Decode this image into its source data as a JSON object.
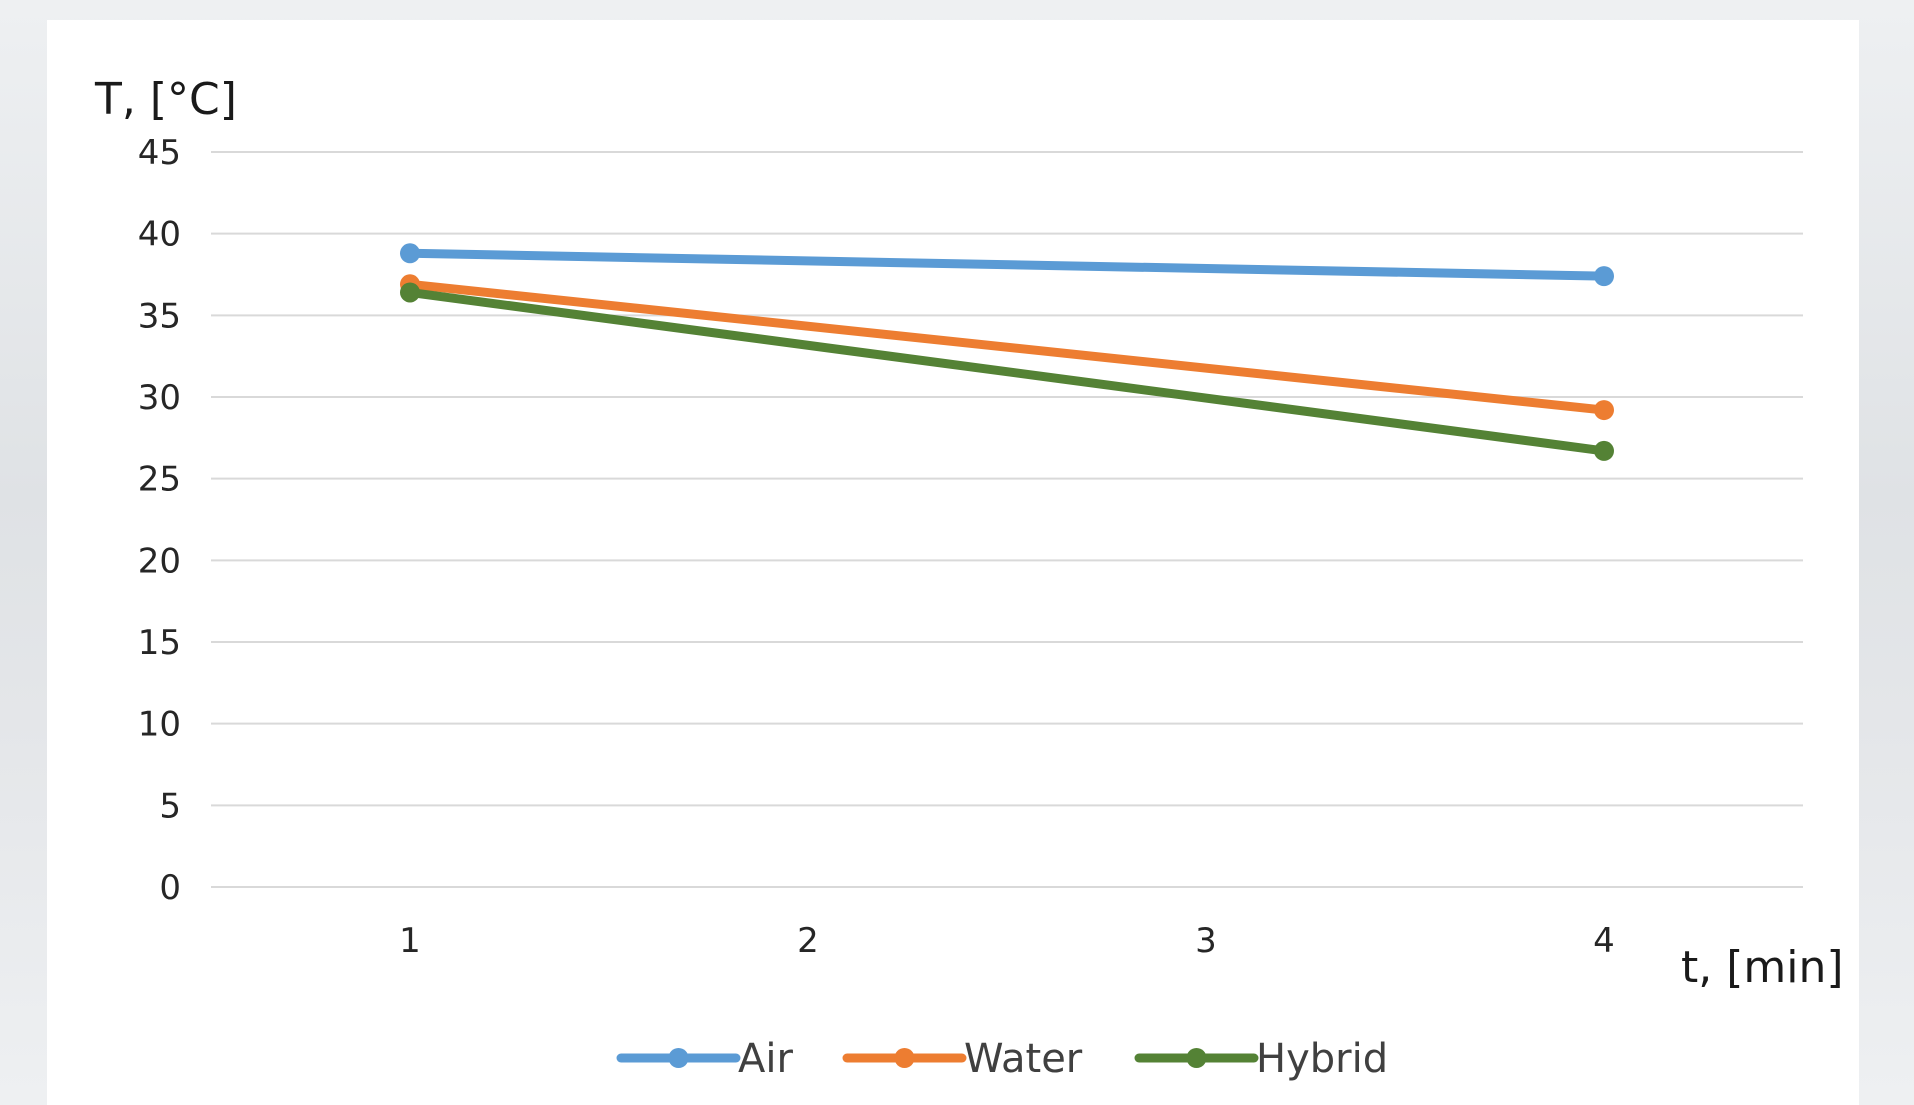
{
  "chart_data": {
    "type": "line",
    "title": "",
    "ylabel": "T, [°C]",
    "xlabel": "t, [min]",
    "x": [
      1,
      2,
      3,
      4
    ],
    "x_tick_labels": [
      "1",
      "2",
      "3",
      "4"
    ],
    "ylim": [
      0,
      45
    ],
    "y_tick_labels": [
      "0",
      "5",
      "10",
      "15",
      "20",
      "25",
      "30",
      "35",
      "40",
      "45"
    ],
    "grid": true,
    "legend_position": "bottom",
    "series": [
      {
        "name": "Air",
        "color": "#5b9bd5",
        "points": [
          [
            1,
            38.8
          ],
          [
            4,
            37.4
          ]
        ]
      },
      {
        "name": "Water",
        "color": "#ed7d31",
        "points": [
          [
            1,
            36.9
          ],
          [
            4,
            29.2
          ]
        ]
      },
      {
        "name": "Hybrid",
        "color": "#548235",
        "points": [
          [
            1,
            36.4
          ],
          [
            4,
            26.7
          ]
        ]
      }
    ]
  }
}
